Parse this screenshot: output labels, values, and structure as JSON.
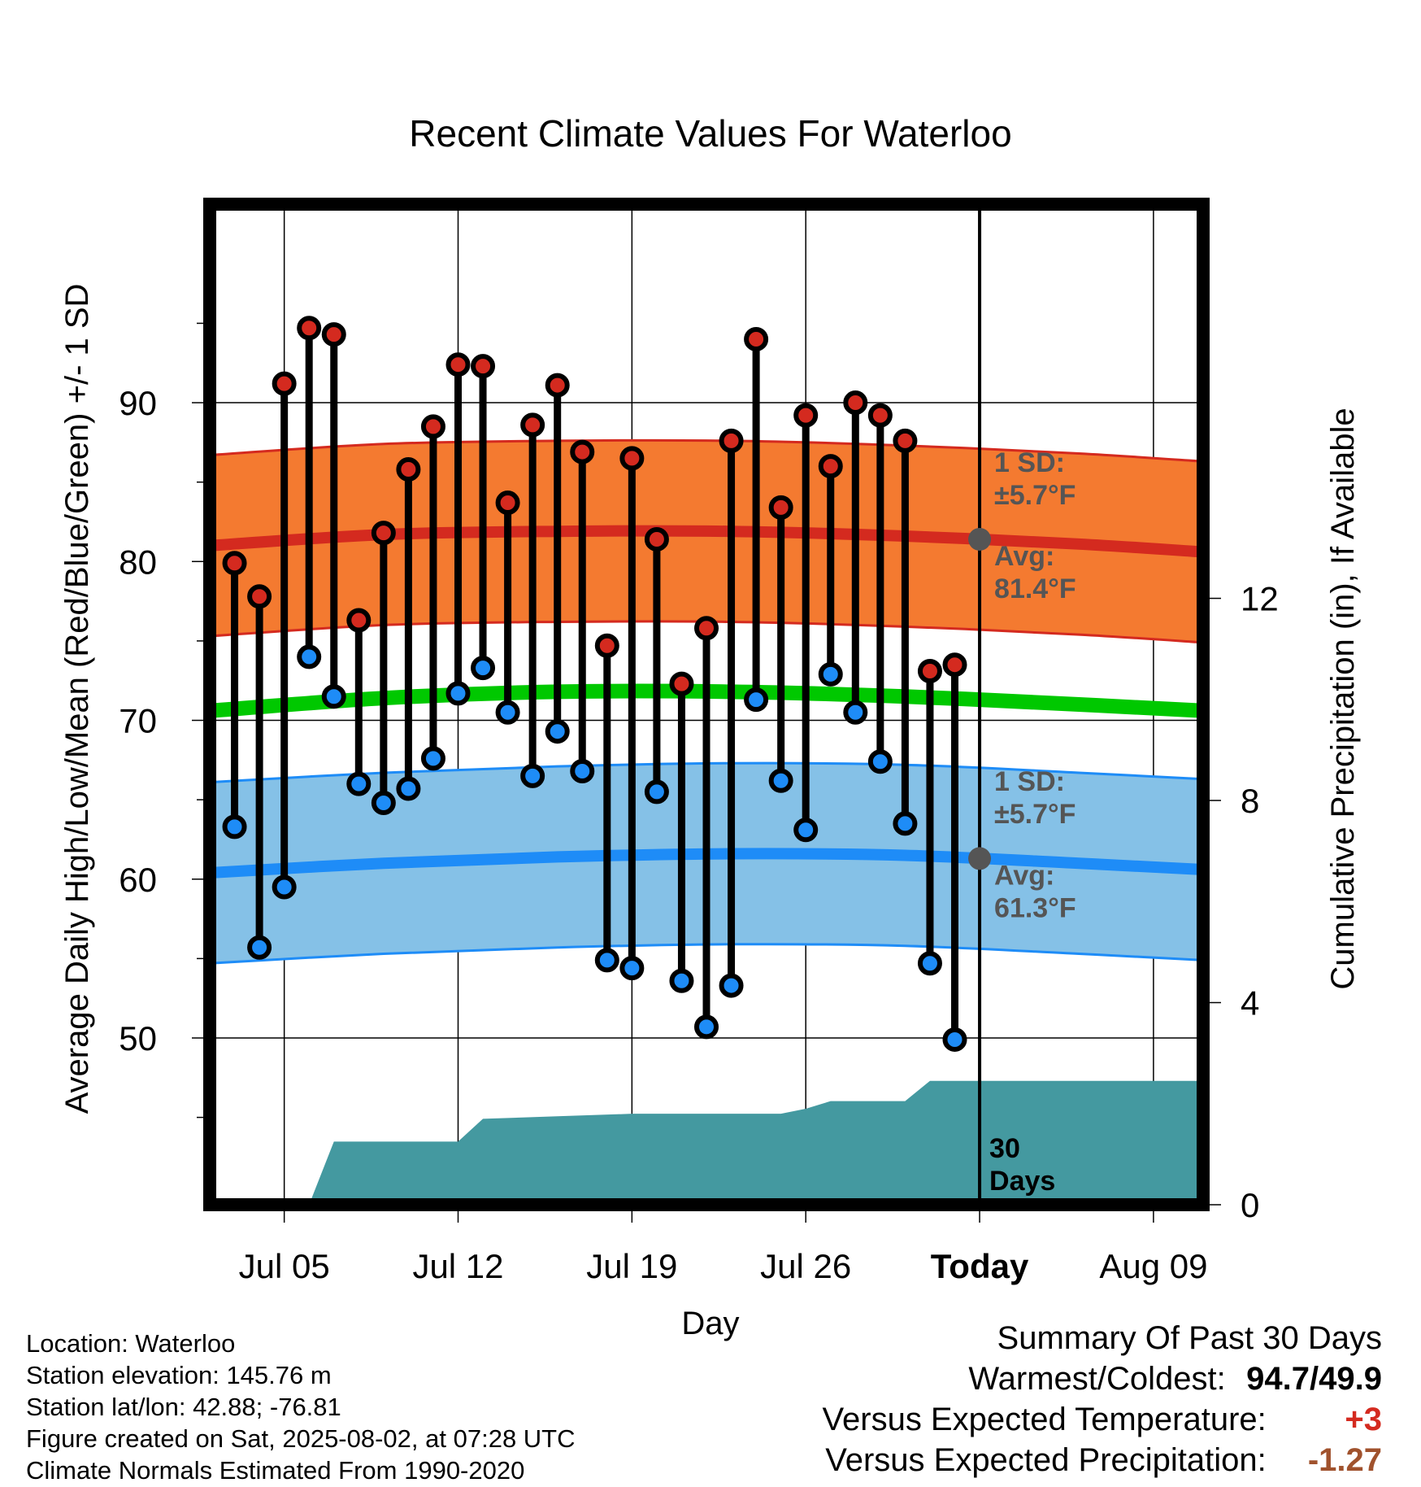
{
  "chart_data": {
    "type": "line",
    "title": "Recent Climate Values For Waterloo",
    "xlabel": "Day",
    "ylabel": "Average Daily High/Low/Mean (Red/Blue/Green) +/- 1 SD",
    "y2label": "Cumulative Precipitation (in), If Available",
    "xlim": [
      "2025-07-02",
      "2025-08-11"
    ],
    "ylim": [
      39.5,
      102.5
    ],
    "y2lim": [
      0,
      19.8
    ],
    "y_ticks": [
      50,
      60,
      70,
      80,
      90
    ],
    "y2_ticks": [
      0,
      4,
      8,
      12
    ],
    "x_ticks": [
      {
        "date": "2025-07-05",
        "label": "Jul 05"
      },
      {
        "date": "2025-07-12",
        "label": "Jul 12"
      },
      {
        "date": "2025-07-19",
        "label": "Jul 19"
      },
      {
        "date": "2025-07-26",
        "label": "Jul 26"
      },
      {
        "date": "2025-08-02",
        "label": "Today"
      },
      {
        "date": "2025-08-09",
        "label": "Aug 09"
      }
    ],
    "grid": true,
    "today": "2025-08-02",
    "days": [
      "2025-07-03",
      "2025-07-04",
      "2025-07-05",
      "2025-07-06",
      "2025-07-07",
      "2025-07-08",
      "2025-07-09",
      "2025-07-10",
      "2025-07-11",
      "2025-07-12",
      "2025-07-13",
      "2025-07-14",
      "2025-07-15",
      "2025-07-16",
      "2025-07-17",
      "2025-07-18",
      "2025-07-19",
      "2025-07-20",
      "2025-07-21",
      "2025-07-22",
      "2025-07-23",
      "2025-07-24",
      "2025-07-25",
      "2025-07-26",
      "2025-07-27",
      "2025-07-28",
      "2025-07-29",
      "2025-07-30",
      "2025-07-31",
      "2025-08-01"
    ],
    "highs": [
      79.9,
      77.8,
      91.2,
      94.7,
      94.3,
      76.3,
      81.8,
      85.8,
      88.5,
      92.4,
      92.3,
      83.7,
      88.6,
      91.1,
      86.9,
      74.7,
      86.5,
      81.4,
      72.3,
      75.8,
      87.6,
      94.0,
      83.4,
      89.2,
      86.0,
      90.0,
      89.2,
      87.6,
      73.1,
      73.5
    ],
    "lows": [
      63.3,
      55.7,
      59.5,
      74.0,
      71.5,
      66.0,
      64.8,
      65.7,
      67.6,
      71.7,
      73.3,
      70.5,
      66.5,
      69.3,
      66.8,
      54.9,
      54.4,
      65.5,
      53.6,
      50.7,
      53.3,
      71.3,
      66.2,
      63.1,
      72.9,
      70.5,
      67.4,
      63.5,
      54.7,
      49.9
    ],
    "normals": {
      "dates": [
        "2025-07-02",
        "2025-07-09",
        "2025-07-16",
        "2025-07-23",
        "2025-07-30",
        "2025-08-06",
        "2025-08-11"
      ],
      "high_avg": [
        81.0,
        81.7,
        81.9,
        81.9,
        81.6,
        81.1,
        80.6
      ],
      "high_sd": 5.7,
      "low_avg": [
        60.4,
        61.0,
        61.4,
        61.6,
        61.5,
        61.0,
        60.6
      ],
      "low_sd": 5.7,
      "mean": [
        70.6,
        71.4,
        71.8,
        71.8,
        71.5,
        71.0,
        70.6
      ]
    },
    "precip_cumulative": {
      "dates": [
        "2025-07-06",
        "2025-07-07",
        "2025-07-12",
        "2025-07-13",
        "2025-07-16",
        "2025-07-19",
        "2025-07-25",
        "2025-07-26",
        "2025-07-27",
        "2025-07-30",
        "2025-07-31",
        "2025-08-11"
      ],
      "values": [
        0.0,
        1.25,
        1.25,
        1.7,
        1.75,
        1.8,
        1.8,
        1.9,
        2.05,
        2.05,
        2.45,
        2.45
      ]
    },
    "annotations": {
      "high_sd": "1 SD:\n±5.7°F",
      "high_avg": "Avg:\n81.4°F",
      "low_sd": "1 SD:\n±5.7°F",
      "low_avg": "Avg:\n61.3°F",
      "precip_days": "30\nDays"
    },
    "today_markers": {
      "high_avg": 81.4,
      "low_avg": 61.3
    }
  },
  "colors": {
    "high_band": "#f47a30",
    "high_line": "#d42a1f",
    "low_band": "#85c1e7",
    "low_line": "#1e8cf7",
    "mean_line": "#00c800",
    "precip": "#4499a0",
    "high_dot": "#d42a1f",
    "low_dot": "#1e8cf7"
  },
  "info": {
    "location": "Location: Waterloo",
    "elevation": "Station elevation: 145.76 m",
    "latlon": "Station lat/lon: 42.88; -76.81",
    "created": "Figure created on Sat, 2025-08-02, at 07:28 UTC",
    "normals": "Climate Normals Estimated From 1990-2020"
  },
  "summary": {
    "heading": "Summary Of Past 30 Days",
    "warm_label": "Warmest/Coldest:",
    "warm_value": "94.7/49.9",
    "temp_label": "Versus Expected Temperature:",
    "temp_value": "+3",
    "precip_label": "Versus Expected Precipitation:",
    "precip_value": "-1.27",
    "temp_color": "#d42a1f",
    "precip_color": "#a0522d"
  }
}
